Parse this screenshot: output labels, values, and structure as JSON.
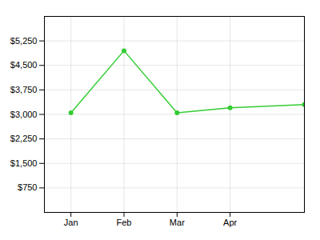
{
  "chart_data": {
    "type": "line",
    "x": [
      0,
      1,
      2,
      3,
      4.4
    ],
    "values": [
      3050,
      4950,
      3050,
      3200,
      3300
    ],
    "color": "#33cc33",
    "marker": "circle",
    "xlim": [
      -0.5,
      4.4
    ],
    "xticks": [
      {
        "value": 0,
        "label": "Jan"
      },
      {
        "value": 1,
        "label": "Feb"
      },
      {
        "value": 2,
        "label": "Mar"
      },
      {
        "value": 3,
        "label": "Apr"
      }
    ],
    "ylim": [
      0,
      6000
    ],
    "yticks": [
      {
        "value": 750,
        "label": "$750"
      },
      {
        "value": 1500,
        "label": "$1,500"
      },
      {
        "value": 2250,
        "label": "$2,250"
      },
      {
        "value": 3000,
        "label": "$3,000"
      },
      {
        "value": 3750,
        "label": "$3,750"
      },
      {
        "value": 4500,
        "label": "$4,500"
      },
      {
        "value": 5250,
        "label": "$5,250"
      }
    ],
    "grid": true
  }
}
